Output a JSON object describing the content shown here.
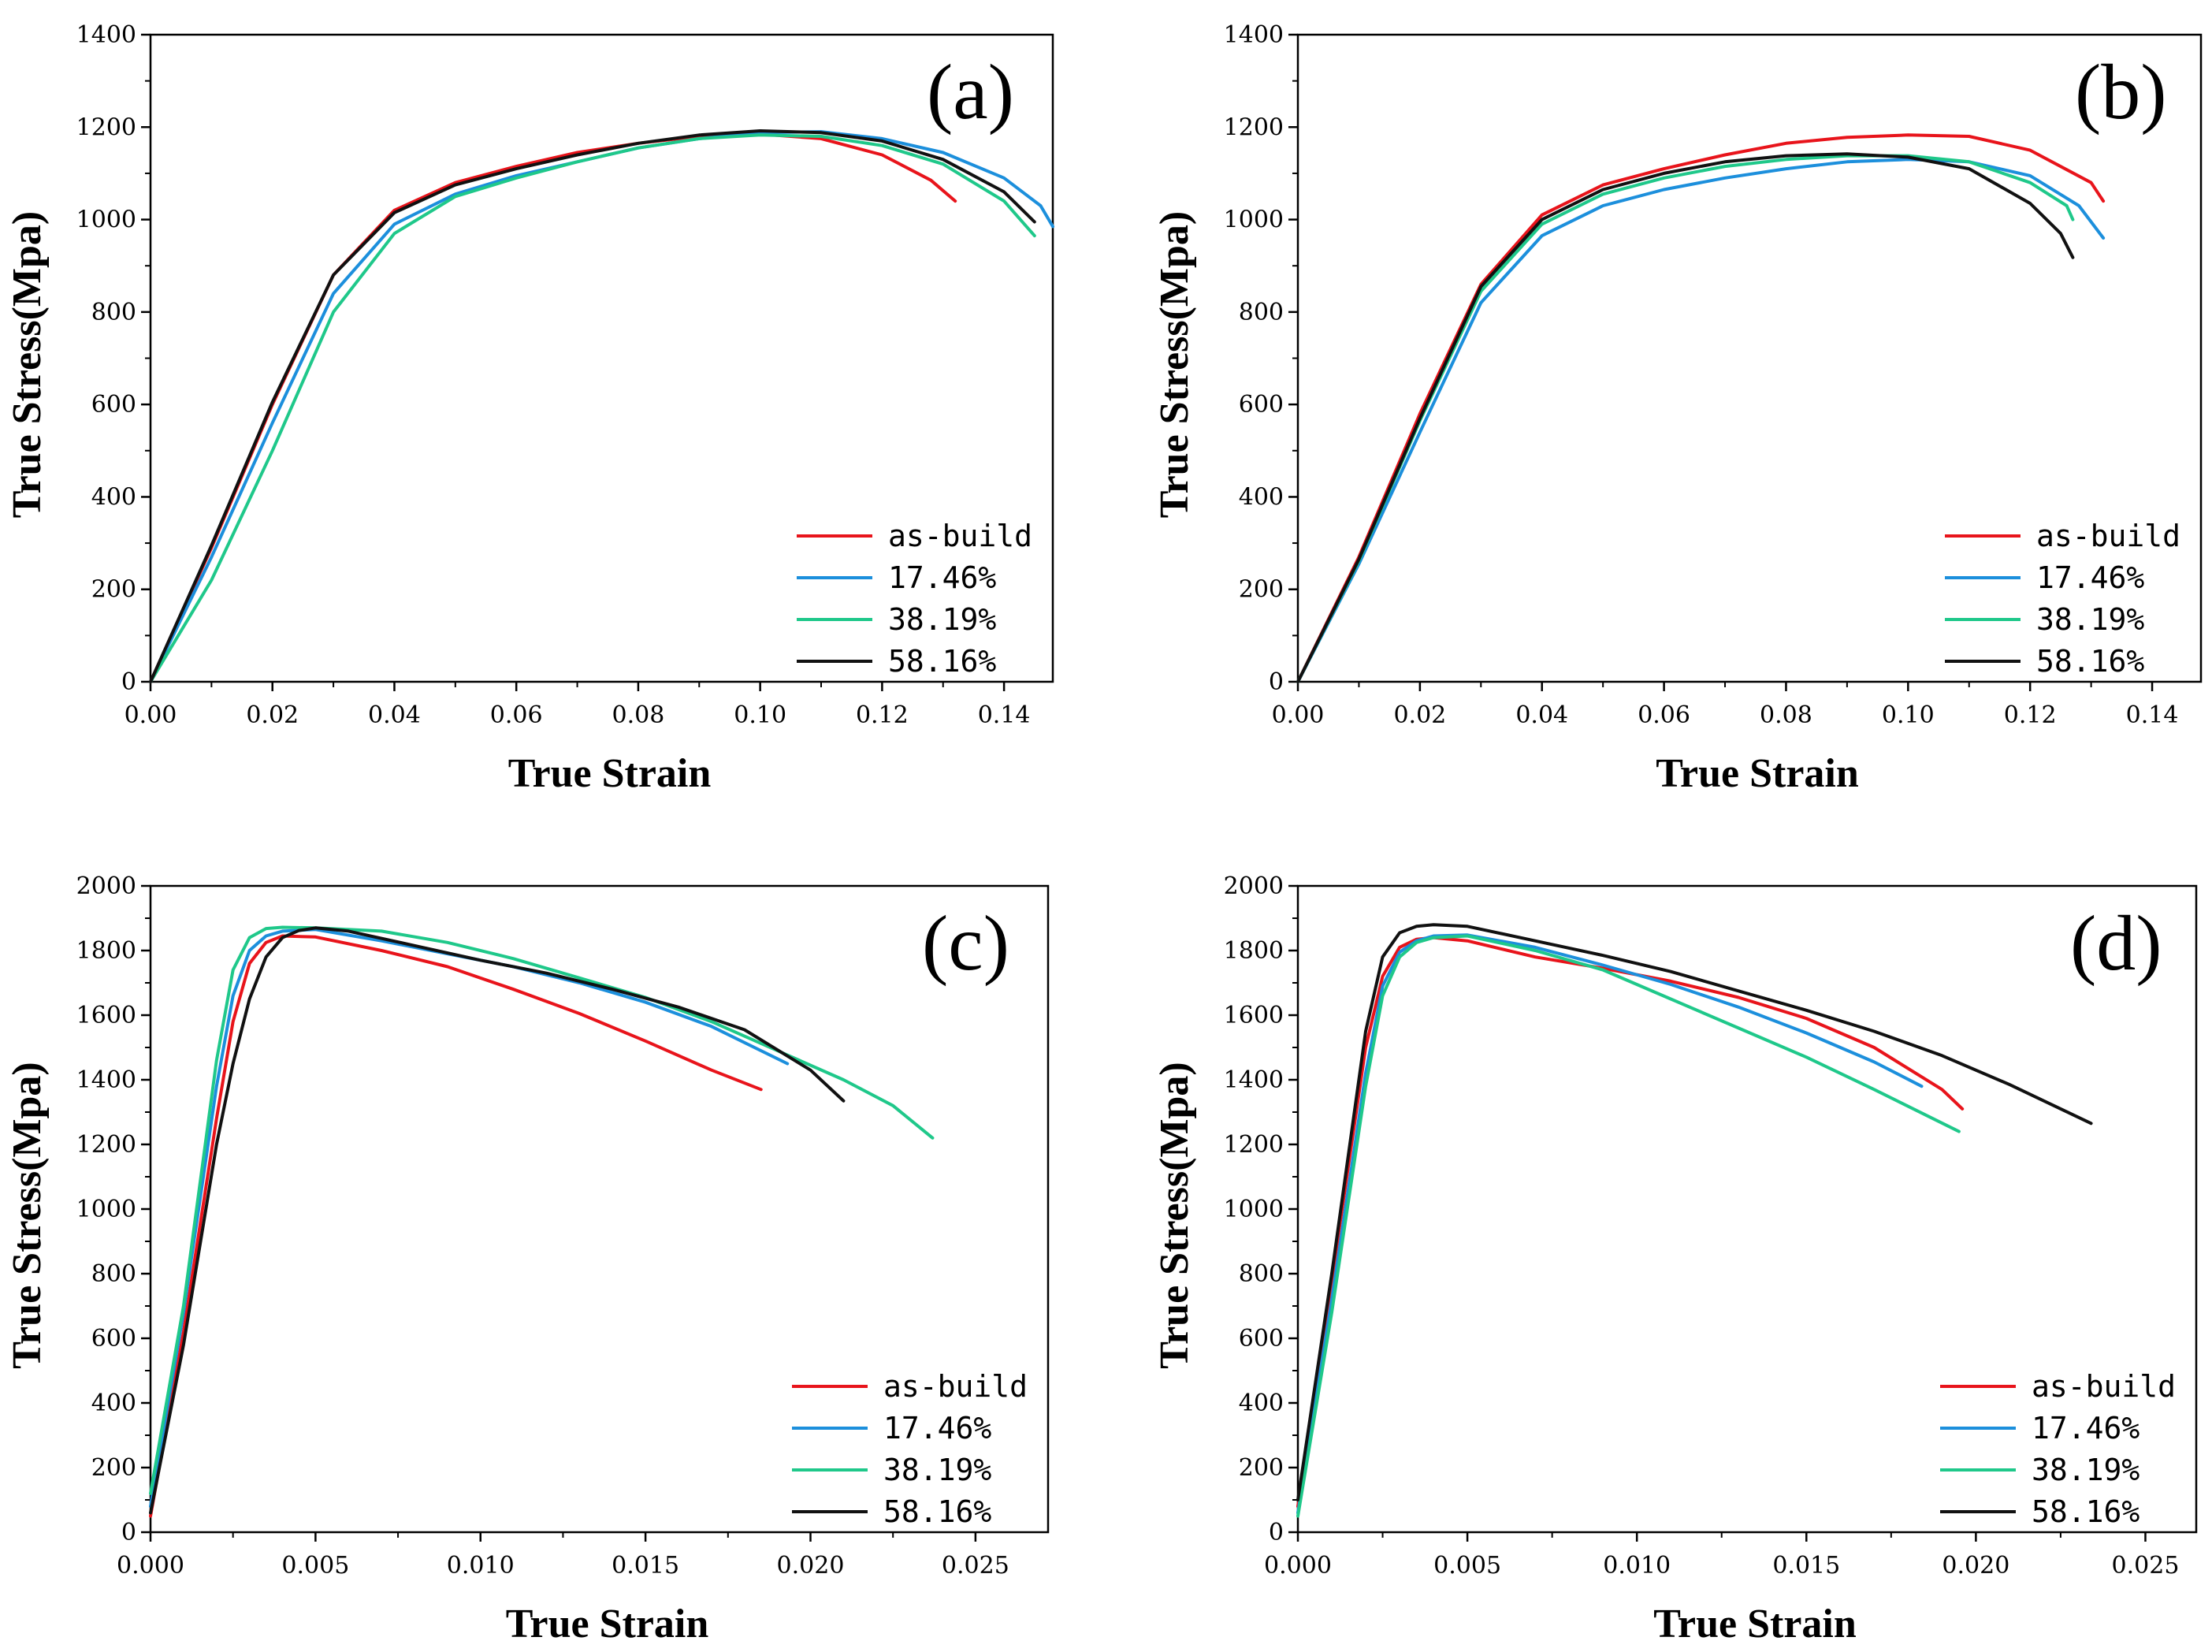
{
  "chart_data": [
    {
      "type": "line",
      "panel_label": "(a)",
      "xlabel": "True Strain",
      "ylabel": "True Stress(Mpa)",
      "xlim": [
        0,
        0.148
      ],
      "ylim": [
        0,
        1400
      ],
      "xticks": [
        0.0,
        0.02,
        0.04,
        0.06,
        0.08,
        0.1,
        0.12,
        0.14
      ],
      "xtick_labels": [
        "0.00",
        "0.02",
        "0.04",
        "0.06",
        "0.08",
        "0.10",
        "0.12",
        "0.14"
      ],
      "yticks": [
        0,
        200,
        400,
        600,
        800,
        1000,
        1200,
        1400
      ],
      "ytick_labels": [
        "0",
        "200",
        "400",
        "600",
        "800",
        "1000",
        "1200",
        "1400"
      ],
      "legend_position": "bottom-right",
      "series": [
        {
          "name": "as-build",
          "color": "#e8141b",
          "x": [
            0,
            0.01,
            0.02,
            0.03,
            0.04,
            0.05,
            0.06,
            0.07,
            0.08,
            0.09,
            0.1,
            0.11,
            0.12,
            0.128,
            0.132
          ],
          "y": [
            0,
            290,
            600,
            880,
            1020,
            1080,
            1115,
            1145,
            1165,
            1180,
            1185,
            1175,
            1140,
            1085,
            1040
          ]
        },
        {
          "name": "17.46%",
          "color": "#1c8fdc",
          "x": [
            0,
            0.01,
            0.02,
            0.03,
            0.04,
            0.05,
            0.06,
            0.07,
            0.08,
            0.09,
            0.1,
            0.11,
            0.12,
            0.13,
            0.14,
            0.146,
            0.148
          ],
          "y": [
            0,
            270,
            560,
            840,
            990,
            1055,
            1095,
            1125,
            1155,
            1175,
            1188,
            1190,
            1175,
            1145,
            1090,
            1030,
            985
          ]
        },
        {
          "name": "38.19%",
          "color": "#1fc88a",
          "x": [
            0,
            0.01,
            0.02,
            0.03,
            0.04,
            0.05,
            0.06,
            0.07,
            0.08,
            0.09,
            0.1,
            0.11,
            0.12,
            0.13,
            0.14,
            0.145
          ],
          "y": [
            0,
            220,
            500,
            800,
            970,
            1050,
            1090,
            1125,
            1155,
            1175,
            1183,
            1180,
            1160,
            1120,
            1040,
            965
          ]
        },
        {
          "name": "58.16%",
          "color": "#111111",
          "x": [
            0,
            0.01,
            0.02,
            0.03,
            0.04,
            0.05,
            0.06,
            0.07,
            0.08,
            0.09,
            0.1,
            0.11,
            0.12,
            0.13,
            0.14,
            0.145
          ],
          "y": [
            0,
            295,
            605,
            880,
            1015,
            1075,
            1110,
            1140,
            1165,
            1183,
            1192,
            1188,
            1170,
            1130,
            1060,
            995
          ]
        }
      ]
    },
    {
      "type": "line",
      "panel_label": "(b)",
      "xlabel": "True Strain",
      "ylabel": "True Stress(Mpa)",
      "xlim": [
        0,
        0.148
      ],
      "ylim": [
        0,
        1400
      ],
      "xticks": [
        0.0,
        0.02,
        0.04,
        0.06,
        0.08,
        0.1,
        0.12,
        0.14
      ],
      "xtick_labels": [
        "0.00",
        "0.02",
        "0.04",
        "0.06",
        "0.08",
        "0.10",
        "0.12",
        "0.14"
      ],
      "yticks": [
        0,
        200,
        400,
        600,
        800,
        1000,
        1200,
        1400
      ],
      "ytick_labels": [
        "0",
        "200",
        "400",
        "600",
        "800",
        "1000",
        "1200",
        "1400"
      ],
      "legend_position": "bottom-right",
      "series": [
        {
          "name": "as-build",
          "color": "#e8141b",
          "x": [
            0,
            0.01,
            0.02,
            0.03,
            0.04,
            0.05,
            0.06,
            0.07,
            0.08,
            0.09,
            0.1,
            0.11,
            0.12,
            0.13,
            0.132
          ],
          "y": [
            0,
            270,
            580,
            860,
            1010,
            1075,
            1110,
            1140,
            1165,
            1178,
            1183,
            1180,
            1150,
            1080,
            1040
          ]
        },
        {
          "name": "17.46%",
          "color": "#1c8fdc",
          "x": [
            0,
            0.01,
            0.02,
            0.03,
            0.04,
            0.05,
            0.06,
            0.07,
            0.08,
            0.09,
            0.1,
            0.11,
            0.12,
            0.128,
            0.132
          ],
          "y": [
            0,
            255,
            540,
            820,
            965,
            1030,
            1065,
            1090,
            1110,
            1125,
            1130,
            1125,
            1095,
            1030,
            960
          ]
        },
        {
          "name": "38.19%",
          "color": "#1fc88a",
          "x": [
            0,
            0.01,
            0.02,
            0.03,
            0.04,
            0.05,
            0.06,
            0.07,
            0.08,
            0.09,
            0.1,
            0.11,
            0.12,
            0.126,
            0.127
          ],
          "y": [
            0,
            262,
            565,
            845,
            990,
            1055,
            1090,
            1115,
            1130,
            1138,
            1138,
            1125,
            1080,
            1030,
            1000
          ]
        },
        {
          "name": "58.16%",
          "color": "#111111",
          "x": [
            0,
            0.01,
            0.02,
            0.03,
            0.04,
            0.05,
            0.06,
            0.07,
            0.08,
            0.09,
            0.1,
            0.11,
            0.12,
            0.125,
            0.127
          ],
          "y": [
            0,
            265,
            570,
            855,
            1000,
            1065,
            1100,
            1125,
            1138,
            1142,
            1135,
            1110,
            1035,
            970,
            918
          ]
        }
      ]
    },
    {
      "type": "line",
      "panel_label": "(c)",
      "xlabel": "True Strain",
      "ylabel": "True Stress(Mpa)",
      "xlim": [
        0,
        0.0272
      ],
      "ylim": [
        0,
        2000
      ],
      "xticks": [
        0.0,
        0.005,
        0.01,
        0.015,
        0.02,
        0.025
      ],
      "xtick_labels": [
        "0.000",
        "0.005",
        "0.010",
        "0.015",
        "0.020",
        "0.025"
      ],
      "yticks": [
        0,
        200,
        400,
        600,
        800,
        1000,
        1200,
        1400,
        1600,
        1800,
        2000
      ],
      "ytick_labels": [
        "0",
        "200",
        "400",
        "600",
        "800",
        "1000",
        "1200",
        "1400",
        "1600",
        "1800",
        "2000"
      ],
      "legend_position": "bottom-right",
      "series": [
        {
          "name": "as-build",
          "color": "#e8141b",
          "x": [
            0,
            0.001,
            0.002,
            0.0025,
            0.003,
            0.0035,
            0.004,
            0.005,
            0.007,
            0.009,
            0.011,
            0.013,
            0.015,
            0.017,
            0.0185
          ],
          "y": [
            50,
            620,
            1280,
            1580,
            1760,
            1825,
            1845,
            1842,
            1800,
            1750,
            1680,
            1605,
            1520,
            1430,
            1370
          ]
        },
        {
          "name": "17.46%",
          "color": "#1c8fdc",
          "x": [
            0,
            0.001,
            0.002,
            0.0025,
            0.003,
            0.0035,
            0.004,
            0.005,
            0.007,
            0.009,
            0.011,
            0.013,
            0.015,
            0.017,
            0.0193
          ],
          "y": [
            80,
            680,
            1380,
            1660,
            1800,
            1845,
            1860,
            1865,
            1830,
            1790,
            1750,
            1700,
            1640,
            1565,
            1450
          ]
        },
        {
          "name": "38.19%",
          "color": "#1fc88a",
          "x": [
            0,
            0.001,
            0.002,
            0.0025,
            0.003,
            0.0035,
            0.004,
            0.005,
            0.007,
            0.009,
            0.011,
            0.013,
            0.015,
            0.017,
            0.019,
            0.021,
            0.0225,
            0.0237
          ],
          "y": [
            120,
            700,
            1460,
            1740,
            1840,
            1868,
            1872,
            1870,
            1860,
            1825,
            1775,
            1715,
            1655,
            1580,
            1490,
            1400,
            1320,
            1220
          ]
        },
        {
          "name": "58.16%",
          "color": "#111111",
          "x": [
            0,
            0.001,
            0.002,
            0.0025,
            0.003,
            0.0035,
            0.004,
            0.0045,
            0.005,
            0.006,
            0.008,
            0.01,
            0.012,
            0.014,
            0.016,
            0.018,
            0.02,
            0.021
          ],
          "y": [
            60,
            580,
            1200,
            1450,
            1650,
            1780,
            1840,
            1862,
            1870,
            1860,
            1815,
            1770,
            1730,
            1680,
            1625,
            1555,
            1430,
            1335
          ]
        }
      ]
    },
    {
      "type": "line",
      "panel_label": "(d)",
      "xlabel": "True Strain",
      "ylabel": "True Stress(Mpa)",
      "xlim": [
        0,
        0.0265
      ],
      "ylim": [
        0,
        2000
      ],
      "xticks": [
        0.0,
        0.005,
        0.01,
        0.015,
        0.02,
        0.025
      ],
      "xtick_labels": [
        "0.000",
        "0.005",
        "0.010",
        "0.015",
        "0.020",
        "0.025"
      ],
      "yticks": [
        0,
        200,
        400,
        600,
        800,
        1000,
        1200,
        1400,
        1600,
        1800,
        2000
      ],
      "ytick_labels": [
        "0",
        "200",
        "400",
        "600",
        "800",
        "1000",
        "1200",
        "1400",
        "1600",
        "1800",
        "2000"
      ],
      "legend_position": "bottom-right",
      "series": [
        {
          "name": "as-build",
          "color": "#e8141b",
          "x": [
            0,
            0.001,
            0.002,
            0.0025,
            0.003,
            0.0035,
            0.004,
            0.005,
            0.007,
            0.009,
            0.011,
            0.013,
            0.015,
            0.017,
            0.019,
            0.0196
          ],
          "y": [
            80,
            780,
            1500,
            1720,
            1810,
            1835,
            1840,
            1830,
            1780,
            1745,
            1705,
            1655,
            1590,
            1500,
            1370,
            1310
          ]
        },
        {
          "name": "17.46%",
          "color": "#1c8fdc",
          "x": [
            0,
            0.001,
            0.002,
            0.0025,
            0.003,
            0.0035,
            0.004,
            0.005,
            0.007,
            0.009,
            0.011,
            0.013,
            0.015,
            0.017,
            0.0184
          ],
          "y": [
            60,
            720,
            1420,
            1690,
            1795,
            1830,
            1845,
            1848,
            1810,
            1755,
            1695,
            1625,
            1545,
            1455,
            1380
          ]
        },
        {
          "name": "38.19%",
          "color": "#1fc88a",
          "x": [
            0,
            0.001,
            0.002,
            0.0025,
            0.003,
            0.0035,
            0.004,
            0.005,
            0.007,
            0.009,
            0.011,
            0.013,
            0.015,
            0.017,
            0.0195
          ],
          "y": [
            50,
            680,
            1380,
            1660,
            1780,
            1825,
            1840,
            1845,
            1800,
            1740,
            1650,
            1560,
            1470,
            1370,
            1240
          ]
        },
        {
          "name": "58.16%",
          "color": "#111111",
          "x": [
            0,
            0.001,
            0.002,
            0.0025,
            0.003,
            0.0035,
            0.004,
            0.005,
            0.007,
            0.009,
            0.011,
            0.013,
            0.015,
            0.017,
            0.019,
            0.021,
            0.0234
          ],
          "y": [
            100,
            800,
            1550,
            1780,
            1855,
            1875,
            1880,
            1875,
            1830,
            1785,
            1735,
            1675,
            1615,
            1550,
            1475,
            1385,
            1265
          ]
        }
      ]
    }
  ]
}
